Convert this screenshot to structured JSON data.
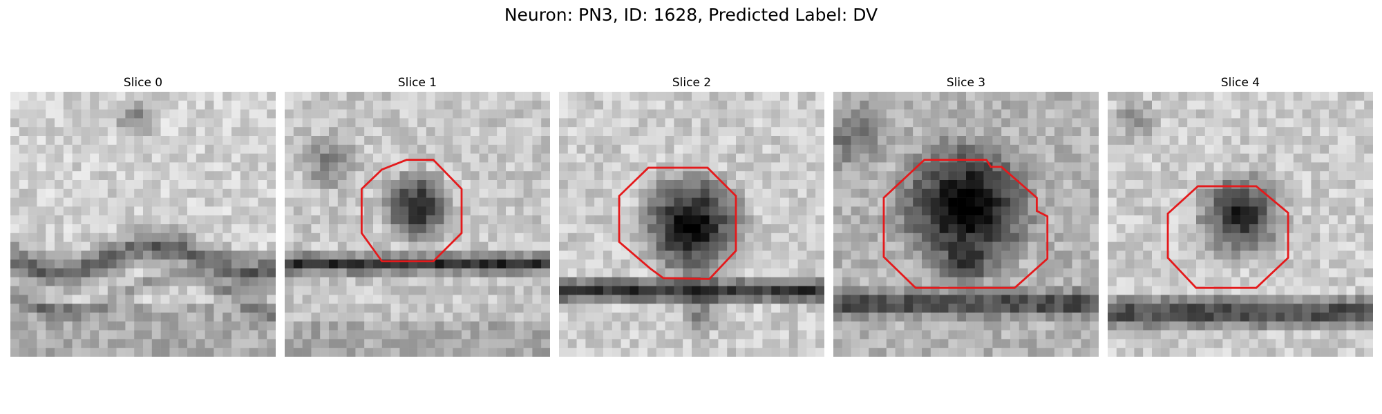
{
  "figure": {
    "title": "Neuron: PN3, ID: 1628, Predicted Label: DV"
  },
  "panels": [
    {
      "title": "Slice 0",
      "has_contour": false
    },
    {
      "title": "Slice 1",
      "has_contour": true
    },
    {
      "title": "Slice 2",
      "has_contour": true
    },
    {
      "title": "Slice 3",
      "has_contour": true
    },
    {
      "title": "Slice 4",
      "has_contour": true
    }
  ],
  "colors": {
    "contour": "#e41a1c",
    "background": "#ffffff"
  }
}
